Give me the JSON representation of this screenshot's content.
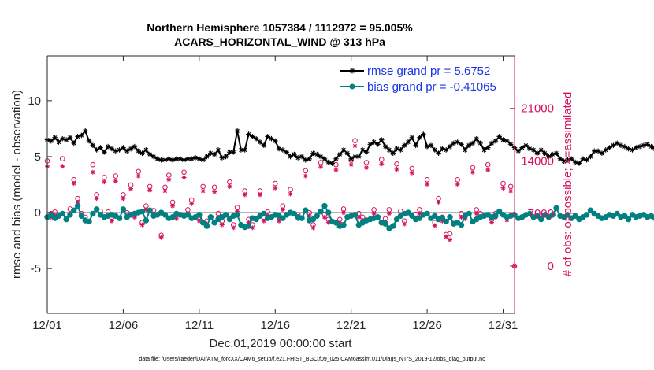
{
  "colors": {
    "rmse": "#000000",
    "bias": "#008080",
    "obs": "#d6125f",
    "legend_text": "#1a35e8",
    "zero_line": "#b3b3b3"
  },
  "chart_data": {
    "type": "line",
    "title_line1": "Northern Hemisphere 1057384 / 1112972 = 95.005%",
    "title_line2": "ACARS_HORIZONTAL_WIND @ 313 hPa",
    "xlabel": "Dec.01,2019 00:00:00 start",
    "ylabel_left": "rmse and bias (model - observation)",
    "ylabel_right": "# of obs: o=possible; ×=assimilated",
    "footnote": "data file: /Users/raeder/DAI/ATM_forcXX/CAM6_setup/f.e21.FHIST_BGC.f09_025.CAM6assim.011/Diags_NTrS_2019-12/obs_diag_output.nc",
    "x_tick_labels": [
      "12/01",
      "12/06",
      "12/11",
      "12/16",
      "12/21",
      "12/26",
      "12/31"
    ],
    "x_tick_days": [
      0,
      5,
      10,
      15,
      20,
      25,
      30
    ],
    "xlim_days": [
      0,
      30.75
    ],
    "ylim_left": [
      -9,
      14
    ],
    "y_ticks_left": [
      -5,
      0,
      5,
      10
    ],
    "y_tick_labels_left": [
      "-5",
      "0",
      "5",
      "10"
    ],
    "ylim_right": [
      -6300,
      28000
    ],
    "y_ticks_right": [
      0,
      7000,
      14000,
      21000
    ],
    "y_tick_labels_right": [
      "0",
      "7000",
      "14000",
      "21000"
    ],
    "legend": {
      "position": "top-right",
      "rmse_label": "rmse grand pr = 5.6752",
      "bias_label": "bias grand pr = -0.41065"
    },
    "series": [
      {
        "name": "rmse",
        "axis": "left",
        "x_step_days": 0.25,
        "values": [
          6.5,
          6.4,
          6.7,
          6.3,
          6.6,
          6.5,
          6.7,
          6.2,
          6.8,
          6.9,
          7.3,
          6.4,
          6.0,
          5.6,
          5.8,
          5.4,
          5.9,
          5.7,
          5.5,
          5.6,
          5.8,
          5.5,
          5.7,
          5.9,
          5.5,
          5.3,
          5.6,
          5.2,
          5.0,
          4.8,
          4.7,
          4.7,
          4.8,
          4.7,
          4.8,
          4.8,
          4.7,
          4.8,
          4.8,
          4.9,
          4.8,
          4.7,
          5.0,
          5.3,
          5.2,
          5.6,
          4.9,
          5.0,
          5.4,
          5.4,
          7.3,
          5.6,
          5.6,
          7.0,
          6.8,
          6.6,
          6.3,
          6.0,
          6.8,
          6.6,
          6.4,
          5.7,
          5.6,
          5.4,
          5.0,
          5.2,
          4.9,
          5.0,
          4.7,
          4.8,
          5.3,
          5.2,
          5.0,
          4.8,
          4.5,
          4.4,
          4.8,
          5.2,
          5.6,
          5.3,
          4.8,
          5.0,
          5.0,
          5.6,
          5.4,
          6.1,
          6.3,
          6.1,
          6.5,
          5.9,
          5.6,
          5.3,
          5.7,
          5.6,
          6.0,
          6.3,
          6.7,
          6.0,
          6.7,
          7.0,
          5.9,
          6.0,
          5.6,
          5.3,
          5.7,
          5.6,
          5.9,
          6.2,
          6.3,
          6.1,
          5.6,
          6.0,
          6.2,
          6.6,
          6.2,
          5.6,
          5.8,
          6.2,
          6.4,
          6.8,
          6.5,
          6.4,
          6.1,
          5.8,
          5.5,
          5.8,
          6.0,
          5.7,
          5.6,
          5.3,
          5.6,
          5.3,
          5.0,
          5.2,
          5.3,
          4.8,
          4.6,
          4.7,
          4.8,
          4.5,
          4.4,
          4.8,
          4.7,
          5.0,
          5.5,
          5.5,
          5.3,
          5.6,
          5.8,
          6.0,
          6.2,
          6.0,
          5.9,
          5.7,
          5.6,
          5.8,
          5.9,
          6.0,
          6.1,
          5.9,
          5.7,
          5.8,
          5.5,
          5.7,
          5.3,
          5.2,
          5.6,
          5.4,
          5.0,
          4.8,
          4.9,
          5.1,
          5.4,
          5.6,
          5.5,
          5.9,
          6.2,
          5.7,
          5.4,
          5.5,
          5.9,
          5.8,
          6.0,
          5.7,
          5.5,
          5.7,
          5.8,
          5.9,
          5.6,
          5.8,
          6.0,
          5.7,
          5.6,
          5.8,
          5.5,
          5.7,
          5.6,
          5.9,
          5.8,
          5.7,
          5.9,
          5.6,
          5.7,
          5.9,
          6.1,
          5.8,
          5.7,
          5.9,
          5.8,
          5.8,
          5.9,
          5.7,
          5.8,
          5.9,
          5.7,
          5.8,
          5.9,
          5.7,
          5.8,
          5.9,
          5.8,
          5.6,
          6.2
        ]
      },
      {
        "name": "bias",
        "axis": "left",
        "x_step_days": 0.25,
        "values": [
          -0.4,
          -0.2,
          -0.5,
          -0.3,
          -0.1,
          -0.6,
          -0.2,
          0.2,
          0.6,
          -0.3,
          -0.7,
          -0.8,
          -0.1,
          0.3,
          -0.2,
          -0.4,
          -0.3,
          -0.2,
          -0.3,
          -0.5,
          0.3,
          -0.4,
          -0.2,
          -0.1,
          0.0,
          0.1,
          -0.7,
          0.2,
          -0.3,
          -0.2,
          0.0,
          -0.2,
          -0.5,
          -0.4,
          -0.1,
          -0.2,
          -0.3,
          -0.2,
          -0.5,
          -0.4,
          -0.2,
          -0.9,
          -1.2,
          -0.4,
          -0.9,
          -0.6,
          -0.4,
          -0.2,
          -0.6,
          -0.3,
          -0.2,
          -1.1,
          -1.3,
          -1.2,
          -0.5,
          -0.6,
          -0.3,
          -0.1,
          -0.5,
          -0.4,
          -0.2,
          -0.3,
          -0.5,
          -0.2,
          0.0,
          -0.1,
          -0.4,
          -0.5,
          0.2,
          -0.7,
          -0.6,
          -0.3,
          0.1,
          0.6,
          0.0,
          -0.8,
          -0.9,
          -1.2,
          -1.1,
          -0.4,
          -0.3,
          -0.2,
          -1.1,
          -0.9,
          -0.7,
          -0.6,
          -0.5,
          -0.4,
          -0.9,
          -1.0,
          -1.4,
          -1.2,
          -0.6,
          -0.3,
          -0.1,
          0.0,
          -0.3,
          -0.6,
          -0.5,
          -0.2,
          -0.1,
          -0.5,
          -0.3,
          -0.6,
          -0.5,
          -0.8,
          -0.4,
          -1.0,
          -0.9,
          -1.1,
          -0.3,
          -0.1,
          -0.8,
          -0.6,
          -0.4,
          -0.3,
          -0.2,
          -0.4,
          -0.3,
          0.1,
          -0.2,
          -0.4,
          -0.3,
          -0.2,
          -0.5,
          -0.4,
          -0.2,
          -0.1,
          -0.4,
          -0.3,
          -0.6,
          -0.2,
          -0.4,
          -0.2,
          0.4,
          -0.3,
          -0.4,
          -0.2,
          -0.5,
          -0.3,
          -0.6,
          -0.4,
          -0.2,
          0.2,
          -0.1,
          -0.3,
          -0.5,
          -0.4,
          -0.2,
          -0.3,
          -0.1,
          -0.4,
          -0.3,
          -0.6,
          -0.2,
          -0.4,
          -0.3,
          -0.2,
          -0.4,
          -0.3,
          -0.5,
          -0.2,
          -0.6,
          -0.4,
          -0.3,
          -0.2,
          -0.4,
          -0.6,
          -0.3,
          -0.5,
          -0.4,
          -0.2,
          -0.3,
          -0.4,
          -1.1,
          -0.5,
          -0.4,
          -0.3,
          -0.2,
          -0.4,
          -0.3,
          -0.5,
          -0.4,
          -0.2,
          -0.3,
          -0.2,
          -0.4,
          -0.3,
          -0.5,
          -0.4,
          -0.2,
          -0.3,
          -0.4,
          -0.2,
          -0.3,
          -0.2,
          -0.4,
          0.1,
          -0.3,
          -0.2,
          -0.4,
          -0.5,
          -0.3,
          -0.4,
          -0.2,
          -0.3,
          -0.1,
          -0.3,
          -0.6,
          -0.8,
          -0.5,
          -1.2,
          -0.9,
          -0.7,
          -1.0,
          -0.8,
          -0.5,
          0.3,
          -0.8,
          -1.0
        ]
      },
      {
        "name": "obs_possible",
        "axis": "right",
        "x_days": [
          0.0,
          0.25,
          0.5,
          1.0,
          1.5,
          1.75,
          2.0,
          2.25,
          2.5,
          3.0,
          3.25,
          3.5,
          3.75,
          4.0,
          4.25,
          4.5,
          5.0,
          5.25,
          5.5,
          5.75,
          6.0,
          6.25,
          6.5,
          6.75,
          7.0,
          7.5,
          7.75,
          8.0,
          8.25,
          8.5,
          9.0,
          9.25,
          9.5,
          10.0,
          10.25,
          10.5,
          11.0,
          11.25,
          11.5,
          12.0,
          12.25,
          12.5,
          13.0,
          13.25,
          13.5,
          14.0,
          14.25,
          14.5,
          15.0,
          15.25,
          15.5,
          16.0,
          16.5,
          17.0,
          17.25,
          17.5,
          18.0,
          18.25,
          18.5,
          19.0,
          19.25,
          19.5,
          20.0,
          20.25,
          20.5,
          20.75,
          21.0,
          21.5,
          22.0,
          22.25,
          22.5,
          23.0,
          23.25,
          23.5,
          24.0,
          24.25,
          24.5,
          25.0,
          25.5,
          25.75,
          26.0,
          26.25,
          26.5,
          27.0,
          27.25,
          27.5,
          28.0,
          28.25,
          28.5,
          29.0,
          29.25,
          29.5,
          30.0,
          30.25,
          30.5
        ],
        "values": [
          14000,
          7000,
          7200,
          14300,
          7600,
          11500,
          9000,
          7000,
          6500,
          13500,
          9500,
          7300,
          11800,
          7200,
          6500,
          12000,
          9500,
          7100,
          10800,
          7000,
          12600,
          5800,
          8000,
          10600,
          7400,
          4100,
          10500,
          12100,
          8500,
          6800,
          12500,
          7500,
          8800,
          6500,
          10600,
          6000,
          10500,
          7000,
          6000,
          11200,
          5500,
          7800,
          10000,
          6200,
          5500,
          10000,
          6500,
          7200,
          11000,
          6500,
          8000,
          10200,
          6800,
          12700,
          7100,
          5500,
          13800,
          6900,
          6200,
          13500,
          6200,
          7600,
          14100,
          16700,
          7000,
          6500,
          13800,
          7500,
          14200,
          6300,
          7500,
          13600,
          7300,
          6000,
          13000,
          6900,
          7500,
          11500,
          5800,
          9000,
          6500,
          4200,
          4300,
          11500,
          7000,
          6800,
          13100,
          7500,
          7000,
          13500,
          6200,
          7000,
          11000,
          6500,
          10600
        ]
      },
      {
        "name": "obs_assimilated",
        "axis": "right",
        "x_days": [
          0.0,
          0.25,
          0.5,
          1.0,
          1.5,
          1.75,
          2.0,
          2.25,
          2.5,
          3.0,
          3.25,
          3.5,
          3.75,
          4.0,
          4.25,
          4.5,
          5.0,
          5.25,
          5.5,
          5.75,
          6.0,
          6.25,
          6.5,
          6.75,
          7.0,
          7.5,
          7.75,
          8.0,
          8.25,
          8.5,
          9.0,
          9.25,
          9.5,
          10.0,
          10.25,
          10.5,
          11.0,
          11.25,
          11.5,
          12.0,
          12.25,
          12.5,
          13.0,
          13.25,
          13.5,
          14.0,
          14.25,
          14.5,
          15.0,
          15.25,
          15.5,
          16.0,
          16.5,
          17.0,
          17.25,
          17.5,
          18.0,
          18.25,
          18.5,
          19.0,
          19.25,
          19.5,
          20.0,
          20.25,
          20.5,
          20.75,
          21.0,
          21.5,
          22.0,
          22.25,
          22.5,
          23.0,
          23.25,
          23.5,
          24.0,
          24.25,
          24.5,
          25.0,
          25.5,
          25.75,
          26.0,
          26.25,
          26.5,
          27.0,
          27.25,
          27.5,
          28.0,
          28.25,
          28.5,
          29.0,
          29.25,
          29.5,
          30.0,
          30.25,
          30.5
        ],
        "values": [
          13300,
          6500,
          6700,
          13300,
          7000,
          11000,
          8500,
          6600,
          6000,
          12500,
          9000,
          6800,
          11200,
          6800,
          6000,
          11300,
          9000,
          6700,
          10300,
          6500,
          12000,
          5500,
          7500,
          10100,
          7000,
          3800,
          10000,
          11500,
          8000,
          6300,
          11800,
          7000,
          8300,
          6000,
          10000,
          5600,
          9900,
          6500,
          5500,
          10600,
          5100,
          7300,
          9500,
          5800,
          5100,
          9500,
          6000,
          6700,
          10400,
          6000,
          7500,
          9600,
          6300,
          12000,
          6700,
          5100,
          13200,
          6500,
          5800,
          12800,
          5800,
          7100,
          13500,
          16000,
          6500,
          6100,
          13100,
          7000,
          13600,
          5900,
          7000,
          12900,
          6800,
          5600,
          12400,
          6400,
          7000,
          10900,
          5400,
          8500,
          6000,
          3900,
          3500,
          10900,
          6500,
          6300,
          12500,
          7000,
          6500,
          12800,
          5800,
          6500,
          10400,
          6100,
          10000
        ]
      }
    ]
  }
}
